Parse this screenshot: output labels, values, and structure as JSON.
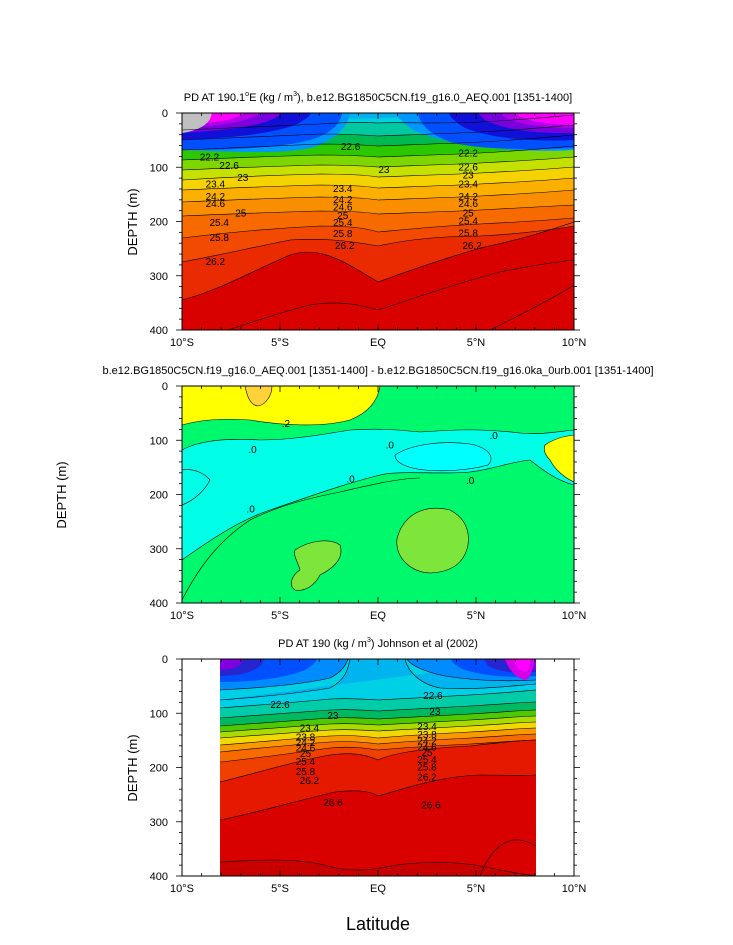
{
  "figure": {
    "xlabel": "Latitude",
    "x_ticks": [
      "10°S",
      "5°S",
      "EQ",
      "5°N",
      "10°N"
    ]
  },
  "chart_data": [
    {
      "type": "heatmap",
      "title": "PD AT 190.1°E (kg / m³), b.e12.BG1850C5CN.f19_g16.0_AEQ.001 [1351-1400]",
      "title_parts": {
        "pre": "PD AT 190.1",
        "sup1": "o",
        "mid": "E (kg / m",
        "sup2": "3",
        "post": "), b.e12.BG1850C5CN.f19_g16.0_AEQ.001 [1351-1400]"
      },
      "ylabel": "DEPTH (m)",
      "y_ticks": [
        "0",
        "100",
        "200",
        "300",
        "400"
      ],
      "xlim": [
        -10,
        10
      ],
      "ylim": [
        0,
        400
      ],
      "contour_labels": [
        {
          "text": "22.2",
          "lat": -8.6,
          "depth": 82
        },
        {
          "text": "22.6",
          "lat": -7.6,
          "depth": 98
        },
        {
          "text": "23",
          "lat": -6.9,
          "depth": 120
        },
        {
          "text": "23.4",
          "lat": -8.3,
          "depth": 132
        },
        {
          "text": "24.2",
          "lat": -8.3,
          "depth": 155
        },
        {
          "text": "24.6",
          "lat": -8.3,
          "depth": 168
        },
        {
          "text": "25",
          "lat": -7.0,
          "depth": 185
        },
        {
          "text": "25.4",
          "lat": -8.1,
          "depth": 203
        },
        {
          "text": "25.8",
          "lat": -8.1,
          "depth": 230
        },
        {
          "text": "26.2",
          "lat": -8.3,
          "depth": 275
        },
        {
          "text": "22.6",
          "lat": -1.4,
          "depth": 63
        },
        {
          "text": "23",
          "lat": 0.3,
          "depth": 105
        },
        {
          "text": "23.4",
          "lat": -1.8,
          "depth": 140
        },
        {
          "text": "24.2",
          "lat": -1.8,
          "depth": 160
        },
        {
          "text": "24.6",
          "lat": -1.8,
          "depth": 174
        },
        {
          "text": "25",
          "lat": -1.8,
          "depth": 190
        },
        {
          "text": "25.4",
          "lat": -1.8,
          "depth": 203
        },
        {
          "text": "25.8",
          "lat": -1.8,
          "depth": 223
        },
        {
          "text": "26.2",
          "lat": -1.7,
          "depth": 245
        },
        {
          "text": "22.2",
          "lat": 4.6,
          "depth": 75
        },
        {
          "text": "22.6",
          "lat": 4.6,
          "depth": 100
        },
        {
          "text": "23",
          "lat": 4.6,
          "depth": 115
        },
        {
          "text": "23.4",
          "lat": 4.6,
          "depth": 132
        },
        {
          "text": "24.2",
          "lat": 4.6,
          "depth": 155
        },
        {
          "text": "24.6",
          "lat": 4.6,
          "depth": 168
        },
        {
          "text": "25",
          "lat": 4.6,
          "depth": 185
        },
        {
          "text": "25.4",
          "lat": 4.6,
          "depth": 200
        },
        {
          "text": "25.8",
          "lat": 4.6,
          "depth": 222
        },
        {
          "text": "26.2",
          "lat": 4.8,
          "depth": 245
        }
      ]
    },
    {
      "type": "heatmap",
      "title": "b.e12.BG1850C5CN.f19_g16.0_AEQ.001 [1351-1400] - b.e12.BG1850C5CN.f19_g16.0ka_0urb.001 [1351-1400]",
      "ylabel": "DEPTH (m)",
      "y_ticks": [
        "0",
        "100",
        "200",
        "300",
        "400"
      ],
      "xlim": [
        -10,
        10
      ],
      "ylim": [
        0,
        400
      ],
      "contour_labels": [
        {
          "text": ".2",
          "lat": -4.7,
          "depth": 70
        },
        {
          "text": ".0",
          "lat": -6.4,
          "depth": 118
        },
        {
          "text": ".0",
          "lat": 0.6,
          "depth": 110
        },
        {
          "text": ".0",
          "lat": 5.9,
          "depth": 92
        },
        {
          "text": ".0",
          "lat": -1.4,
          "depth": 172
        },
        {
          "text": ".0",
          "lat": 4.7,
          "depth": 175
        },
        {
          "text": ".0",
          "lat": -6.5,
          "depth": 228
        }
      ]
    },
    {
      "type": "heatmap",
      "title": "PD AT 190 (kg / m³) Johnson et al (2002)",
      "title_parts": {
        "pre": "PD AT 190 (kg / m",
        "sup": "3",
        "post": ") Johnson et al (2002)"
      },
      "ylabel": "DEPTH (m)",
      "y_ticks": [
        "0",
        "100",
        "200",
        "300",
        "400"
      ],
      "xlim": [
        -10,
        10
      ],
      "ylim": [
        0,
        400
      ],
      "data_lat_range": [
        -8,
        8
      ],
      "contour_labels": [
        {
          "text": "22.6",
          "lat": -5.0,
          "depth": 85
        },
        {
          "text": "23",
          "lat": -2.3,
          "depth": 105
        },
        {
          "text": "23.4",
          "lat": -3.5,
          "depth": 128
        },
        {
          "text": "23.8",
          "lat": -3.7,
          "depth": 145
        },
        {
          "text": "24.2",
          "lat": -3.7,
          "depth": 155
        },
        {
          "text": "24.6",
          "lat": -3.7,
          "depth": 165
        },
        {
          "text": "25",
          "lat": -3.7,
          "depth": 175
        },
        {
          "text": "25.4",
          "lat": -3.7,
          "depth": 190
        },
        {
          "text": "25.8",
          "lat": -3.7,
          "depth": 208
        },
        {
          "text": "26.2",
          "lat": -3.5,
          "depth": 225
        },
        {
          "text": "26.6",
          "lat": -2.3,
          "depth": 265
        },
        {
          "text": "22.6",
          "lat": 2.8,
          "depth": 68
        },
        {
          "text": "23",
          "lat": 2.9,
          "depth": 98
        },
        {
          "text": "23.4",
          "lat": 2.5,
          "depth": 125
        },
        {
          "text": "23.8",
          "lat": 2.5,
          "depth": 140
        },
        {
          "text": "24.2",
          "lat": 2.5,
          "depth": 152
        },
        {
          "text": "24.6",
          "lat": 2.5,
          "depth": 163
        },
        {
          "text": "25",
          "lat": 2.5,
          "depth": 173
        },
        {
          "text": "25.4",
          "lat": 2.5,
          "depth": 186
        },
        {
          "text": "25.8",
          "lat": 2.5,
          "depth": 200
        },
        {
          "text": "26.2",
          "lat": 2.5,
          "depth": 218
        },
        {
          "text": "26.6",
          "lat": 2.7,
          "depth": 270
        }
      ]
    }
  ]
}
